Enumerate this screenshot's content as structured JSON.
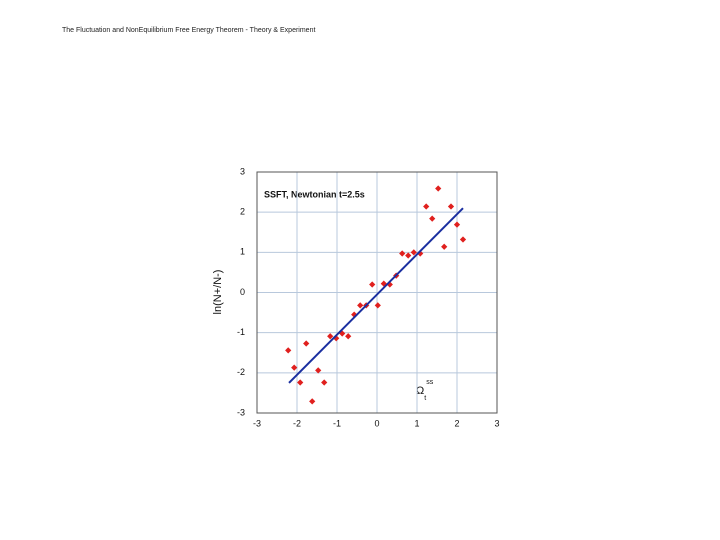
{
  "header": {
    "title": "The Fluctuation and NonEquilibrium Free Energy Theorem - Theory & Experiment"
  },
  "chart_data": {
    "type": "scatter",
    "title": "SSFT, Newtonian t=2.5s",
    "ylabel": "ln(N+/N-)",
    "xlabel": {
      "symbol": "Ω",
      "sub": "t",
      "sup": "ss"
    },
    "xlim": [
      -3,
      3
    ],
    "ylim": [
      -3,
      3
    ],
    "xticks": [
      -3,
      -2,
      -1,
      0,
      1,
      2,
      3
    ],
    "yticks": [
      -3,
      -2,
      -1,
      0,
      1,
      2,
      3
    ],
    "grid": true,
    "series": [
      {
        "color": "#e0201e",
        "x": [
          -2.22,
          -2.07,
          -1.92,
          -1.77,
          -1.62,
          -1.47,
          -1.32,
          -1.17,
          -1.02,
          -0.87,
          -0.72,
          -0.57,
          -0.42,
          -0.27,
          -0.12,
          0.02,
          0.17,
          0.32,
          0.48,
          0.63,
          0.78,
          0.92,
          1.08,
          1.23,
          1.38,
          1.53,
          1.68,
          1.85,
          2.0,
          2.15
        ],
        "values": [
          -1.44,
          -1.87,
          -2.24,
          -1.27,
          -2.71,
          -1.94,
          -2.24,
          -1.09,
          -1.14,
          -1.02,
          -1.09,
          -0.55,
          -0.32,
          -0.32,
          0.2,
          -0.32,
          0.22,
          0.2,
          0.42,
          0.97,
          0.92,
          1.0,
          0.97,
          2.14,
          1.84,
          2.59,
          1.14,
          2.14,
          1.69,
          1.32
        ]
      }
    ],
    "fit": {
      "color": "#1a2fa0",
      "x": [
        -2.2,
        2.15
      ],
      "values": [
        -2.25,
        2.1
      ]
    }
  }
}
